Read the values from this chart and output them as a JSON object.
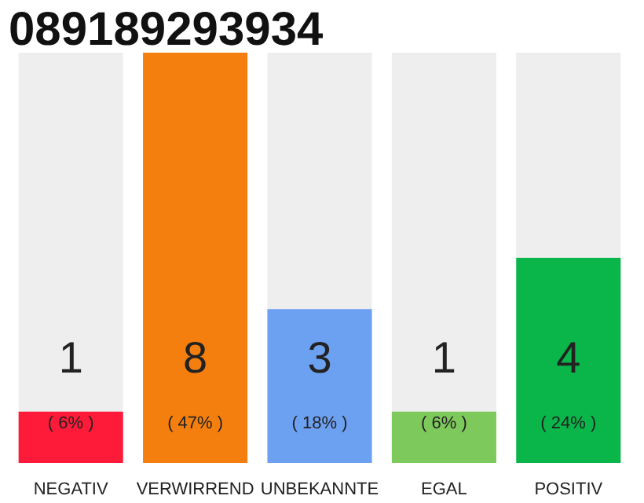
{
  "chart_data": {
    "type": "bar",
    "title": "089189293934",
    "categories": [
      "NEGATIV",
      "VERWIRREND",
      "UNBEKANNTE",
      "EGAL",
      "POSITIV"
    ],
    "values": [
      1,
      8,
      3,
      1,
      4
    ],
    "colors": [
      "#fe1b3a",
      "#f57f0e",
      "#6ca0f0",
      "#7ec95c",
      "#0ab64a"
    ],
    "data_labels": true,
    "annotations": [
      "( 6% )",
      "( 47% )",
      "( 18% )",
      "( 6% )",
      "( 24% )"
    ]
  }
}
